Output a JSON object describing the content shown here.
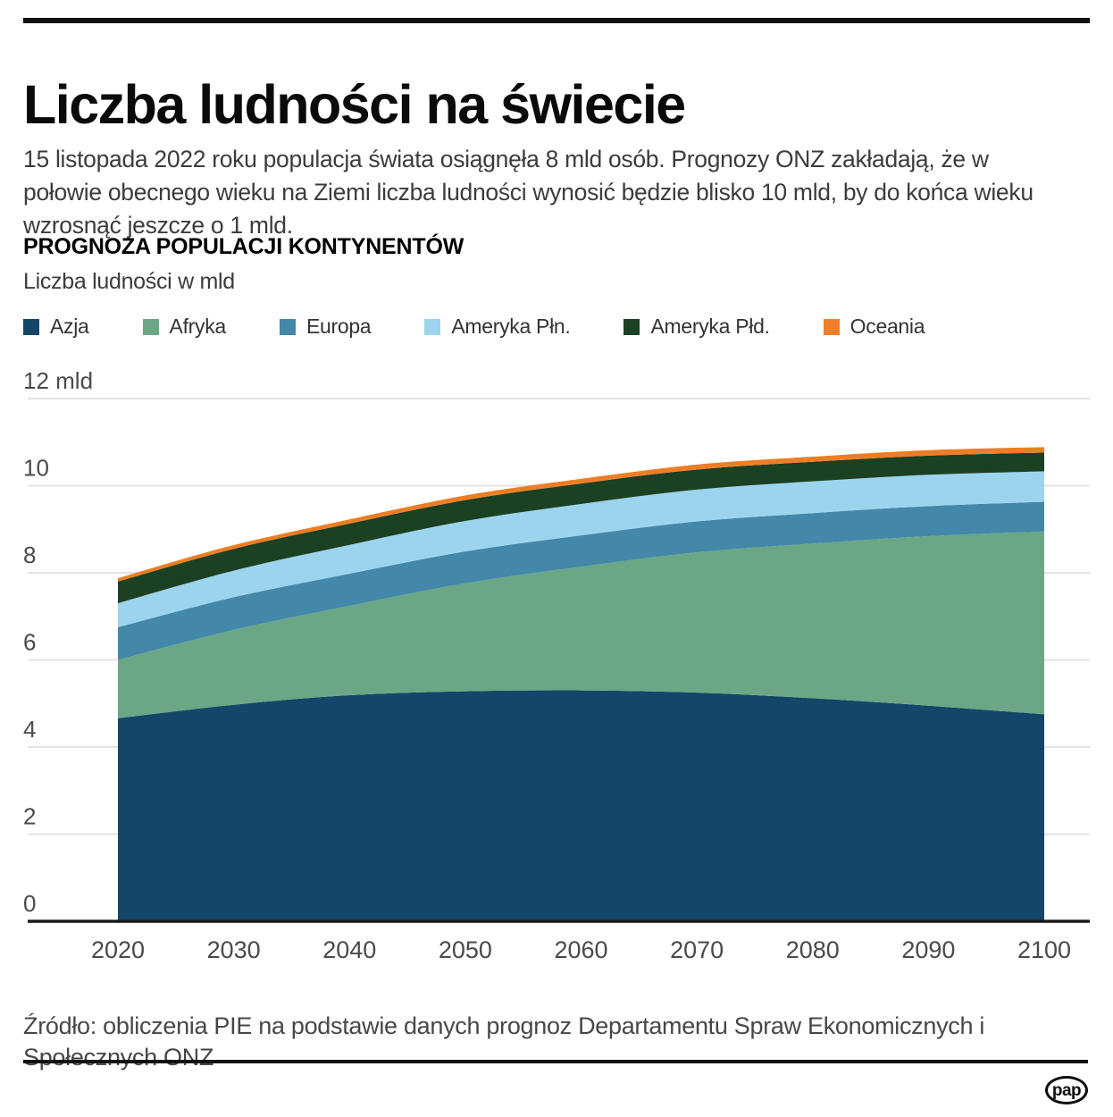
{
  "header": {
    "title": "Liczba ludności na świecie",
    "intro": "15 listopada 2022 roku populacja świata osiągnęła 8 mld osób. Prognozy ONZ zakładają, że w połowie obecnego wieku na Ziemi liczba ludności wynosić będzie blisko 10 mld, by do końca wieku wzrosnąć jeszcze o 1 mld.",
    "section_title": "PROGNOZA POPULACJI KONTYNENTÓW",
    "unit_label": "Liczba ludności w mld"
  },
  "chart_data": {
    "type": "area",
    "stacked": true,
    "x": [
      2020,
      2030,
      2040,
      2050,
      2060,
      2070,
      2080,
      2090,
      2100
    ],
    "series": [
      {
        "name": "Azja",
        "color": "#134668",
        "values": [
          4.66,
          4.97,
          5.19,
          5.28,
          5.3,
          5.25,
          5.12,
          4.95,
          4.75
        ]
      },
      {
        "name": "Afryka",
        "color": "#6BA685",
        "values": [
          1.34,
          1.72,
          2.05,
          2.48,
          2.84,
          3.22,
          3.55,
          3.89,
          4.2
        ]
      },
      {
        "name": "Europa",
        "color": "#4488A9",
        "values": [
          0.75,
          0.75,
          0.74,
          0.73,
          0.72,
          0.71,
          0.7,
          0.69,
          0.68
        ]
      },
      {
        "name": "Ameryka Płn.",
        "color": "#9CD4EE",
        "values": [
          0.55,
          0.61,
          0.66,
          0.7,
          0.72,
          0.73,
          0.73,
          0.72,
          0.7
        ]
      },
      {
        "name": "Ameryka Płd.",
        "color": "#1B4022",
        "values": [
          0.5,
          0.5,
          0.49,
          0.48,
          0.47,
          0.46,
          0.45,
          0.44,
          0.43
        ]
      },
      {
        "name": "Oceania",
        "color": "#EE7F28",
        "values": [
          0.04,
          0.05,
          0.06,
          0.07,
          0.07,
          0.08,
          0.08,
          0.09,
          0.09
        ]
      }
    ],
    "y_ticks": [
      0,
      2,
      4,
      6,
      8,
      10,
      12
    ],
    "y_top_label": "12 mld",
    "ylim": [
      0,
      12
    ],
    "grid": true,
    "legend_position": "top",
    "top_edge_stroke_color": "#ED7D23"
  },
  "footer": {
    "source": "Źródło: obliczenia PIE na podstawie danych prognoz Departamentu Spraw Ekonomicznych i Społecznych ONZ",
    "logo_text": "pap"
  }
}
